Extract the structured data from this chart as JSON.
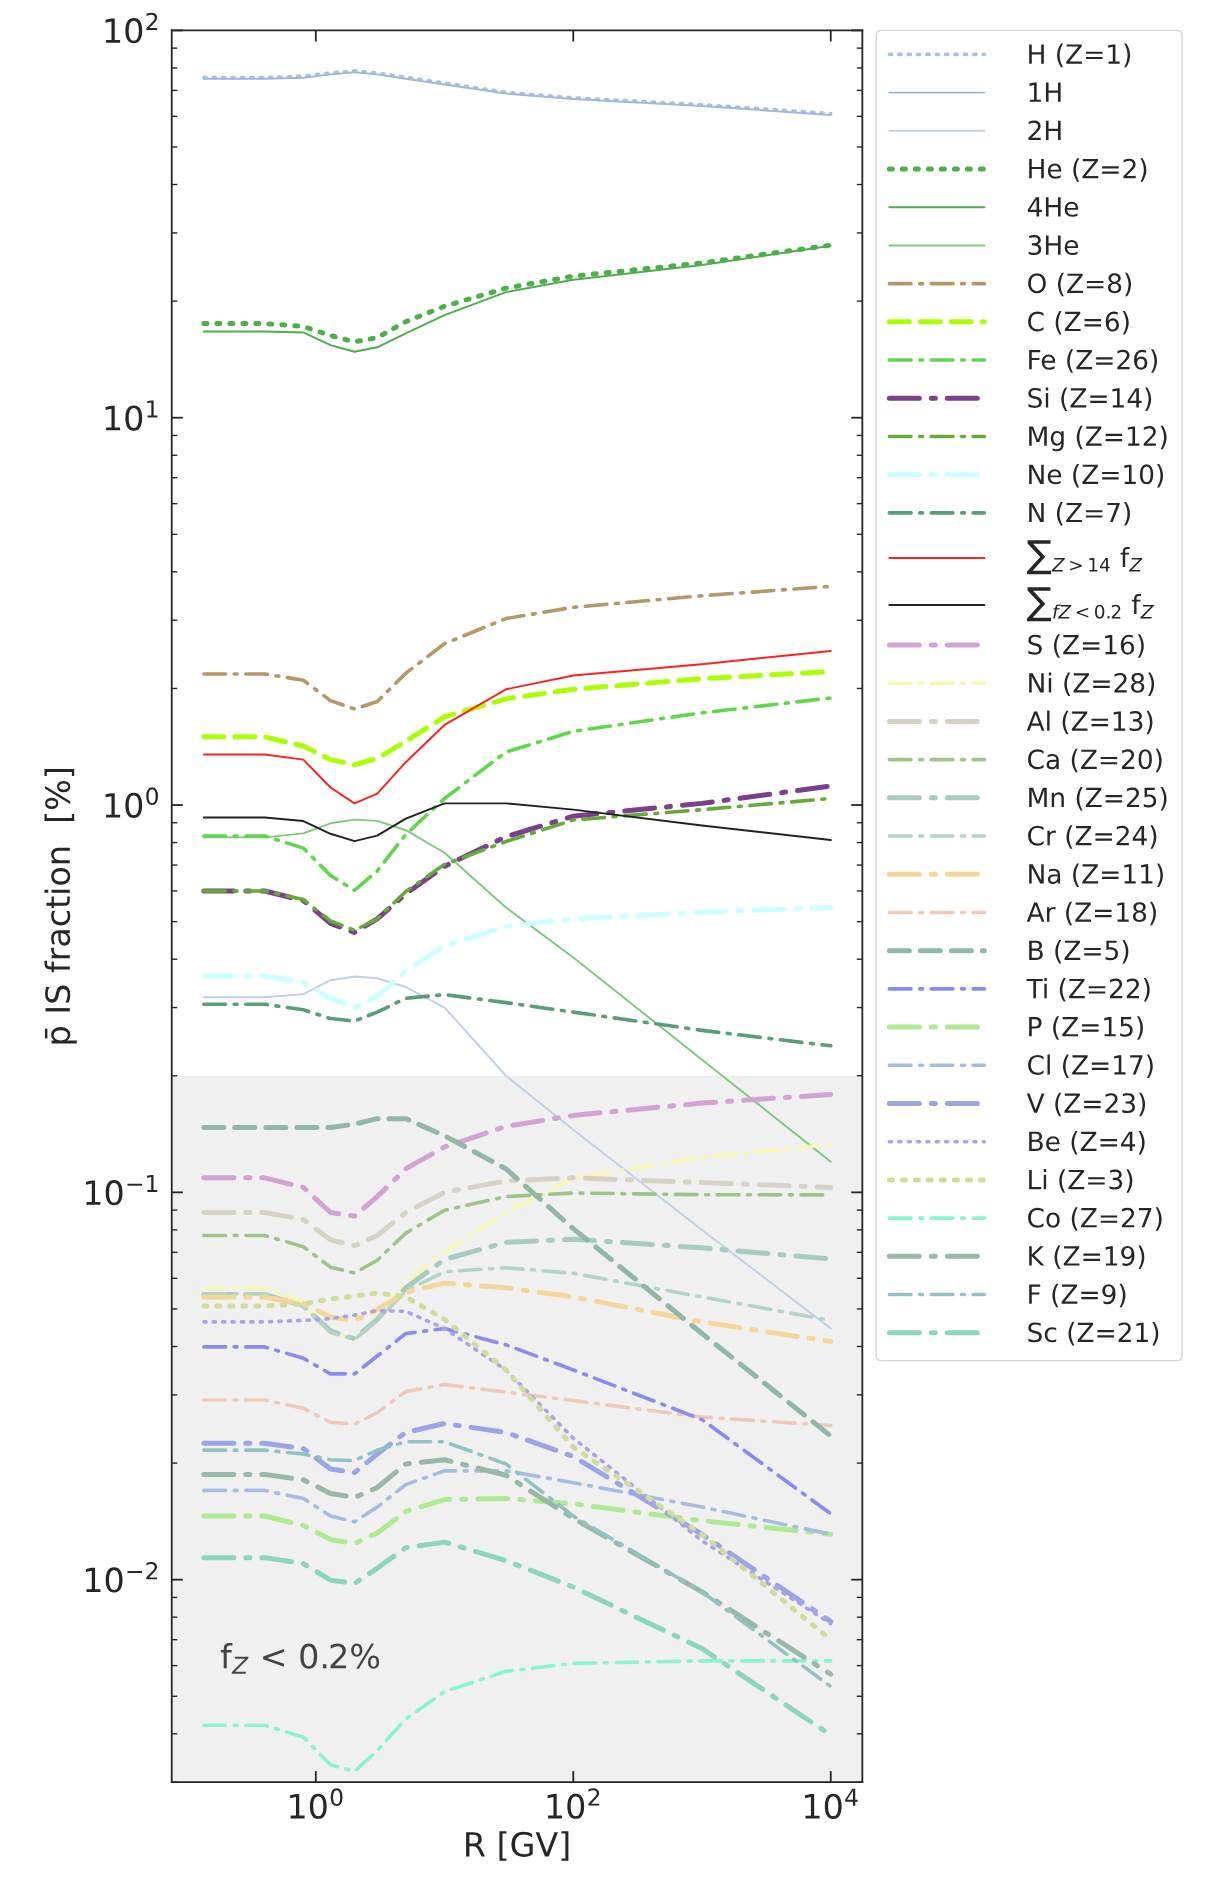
{
  "chart_data": {
    "type": "line",
    "xlabel": "R [GV]",
    "ylabel": "p̄ IS fraction  [%]",
    "log": "xy",
    "grid": false,
    "legend": "right",
    "x": [
      0.135,
      0.4,
      0.8,
      1.3,
      2,
      3,
      5,
      10,
      30,
      100,
      1000,
      10000
    ],
    "xlim": [
      0.076,
      17600
    ],
    "ylim": [
      0.003,
      100
    ],
    "xticks": [
      {
        "value": 1,
        "label": "10$^{0}$"
      },
      {
        "value": 100,
        "label": "10$^{2}$"
      },
      {
        "value": 10000,
        "label": "10$^{4}$"
      }
    ],
    "yticks": [
      {
        "value": 0.01,
        "label": "10$^{−2}$"
      },
      {
        "value": 0.1,
        "label": "10$^{−1}$"
      },
      {
        "value": 1,
        "label": "10$^{0}$"
      },
      {
        "value": 10,
        "label": "10$^{1}$"
      },
      {
        "value": 100,
        "label": "10$^{2}$"
      }
    ],
    "bands": [
      {
        "axis": "y",
        "from": 0.003,
        "to": 0.2,
        "color": "#f0f0f0"
      }
    ],
    "annotations": [
      "f$_{Z}$ < 0.2%"
    ],
    "series": [
      {
        "name": "H (Z=1)",
        "color": "#a9c0df",
        "line_style": "dotted",
        "values": [
          75.5,
          75.5,
          76.2,
          77.6,
          78.7,
          77.6,
          75.7,
          73.1,
          69.2,
          67.0,
          64.3,
          61.0
        ]
      },
      {
        "name": "1H",
        "color": "#9fb8dc",
        "line_style": "solid",
        "values": [
          75.0,
          75.0,
          75.5,
          77.0,
          78.0,
          77.0,
          75.0,
          72.5,
          68.7,
          66.5,
          63.8,
          60.5
        ]
      },
      {
        "name": "2H",
        "color": "#c0d0e6",
        "line_style": "solid",
        "values": [
          0.319,
          0.319,
          0.325,
          0.353,
          0.361,
          0.357,
          0.339,
          0.3,
          0.2,
          0.145,
          0.08,
          0.0445
        ]
      },
      {
        "name": "He (Z=2)",
        "color": "#4daf4a",
        "line_style": "dotted",
        "values": [
          17.5,
          17.5,
          17.2,
          16.3,
          15.7,
          16.1,
          17.7,
          19.4,
          21.6,
          23.2,
          25.1,
          27.9
        ]
      },
      {
        "name": "4He",
        "color": "#4daf4a",
        "line_style": "solid",
        "values": [
          16.7,
          16.7,
          16.6,
          15.4,
          14.8,
          15.2,
          16.5,
          18.4,
          21.1,
          22.7,
          24.8,
          27.8
        ]
      },
      {
        "name": "3He",
        "color": "#7fc97f",
        "line_style": "solid",
        "values": [
          0.825,
          0.825,
          0.845,
          0.897,
          0.917,
          0.91,
          0.861,
          0.753,
          0.544,
          0.404,
          0.22,
          0.12
        ]
      },
      {
        "name": "O (Z=8)",
        "color": "#b5986a",
        "line_style": "dashdot",
        "values": [
          2.18,
          2.18,
          2.1,
          1.86,
          1.77,
          1.85,
          2.19,
          2.61,
          3.03,
          3.24,
          3.47,
          3.67
        ]
      },
      {
        "name": "C (Z=6)",
        "color": "#aaff00",
        "line_style": "dashed",
        "values": [
          1.5,
          1.5,
          1.42,
          1.31,
          1.27,
          1.32,
          1.46,
          1.69,
          1.88,
          1.99,
          2.12,
          2.21
        ]
      },
      {
        "name": "Fe (Z=26)",
        "color": "#5ed84a",
        "line_style": "dashdot",
        "values": [
          0.832,
          0.832,
          0.774,
          0.658,
          0.602,
          0.676,
          0.839,
          1.04,
          1.37,
          1.55,
          1.73,
          1.89
        ]
      },
      {
        "name": "Si (Z=14)",
        "color": "#7b3f8c",
        "line_style": "dashdot",
        "values": [
          0.6,
          0.6,
          0.567,
          0.495,
          0.469,
          0.508,
          0.59,
          0.695,
          0.828,
          0.936,
          1.01,
          1.12
        ]
      },
      {
        "name": "Mg (Z=12)",
        "color": "#66aa3a",
        "line_style": "dashdot",
        "values": [
          0.6,
          0.6,
          0.57,
          0.502,
          0.475,
          0.508,
          0.598,
          0.703,
          0.805,
          0.915,
          0.973,
          1.04
        ]
      },
      {
        "name": "Ne (Z=10)",
        "color": "#ccffff",
        "line_style": "dashdot",
        "values": [
          0.362,
          0.362,
          0.348,
          0.317,
          0.299,
          0.321,
          0.373,
          0.432,
          0.486,
          0.508,
          0.529,
          0.544
        ]
      },
      {
        "name": "N (Z=7)",
        "color": "#5a9e78",
        "line_style": "dashdot",
        "values": [
          0.306,
          0.306,
          0.296,
          0.281,
          0.277,
          0.292,
          0.317,
          0.324,
          0.309,
          0.292,
          0.262,
          0.239
        ]
      },
      {
        "name": "∑$_{Z>14}$ f$_{Z}$",
        "color": "#ff2020",
        "line_style": "solid",
        "values": [
          1.35,
          1.35,
          1.31,
          1.11,
          1.01,
          1.07,
          1.29,
          1.61,
          1.99,
          2.16,
          2.31,
          2.5
        ]
      },
      {
        "name": "∑$_{fZ<0.2}$ f$_{Z}$",
        "color": "#222222",
        "line_style": "solid",
        "values": [
          0.929,
          0.929,
          0.909,
          0.843,
          0.807,
          0.834,
          0.922,
          1.01,
          1.01,
          0.973,
          0.885,
          0.812
        ]
      },
      {
        "name": "S (Z=16)",
        "color": "#d4a3d4",
        "line_style": "dashdot",
        "values": [
          0.109,
          0.109,
          0.103,
          0.0887,
          0.0869,
          0.0975,
          0.115,
          0.131,
          0.148,
          0.158,
          0.17,
          0.179
        ]
      },
      {
        "name": "Ni (Z=28)",
        "color": "#f7f7b0",
        "line_style": "dashdot",
        "values": [
          0.0567,
          0.0567,
          0.0523,
          0.0432,
          0.0416,
          0.0482,
          0.0583,
          0.0705,
          0.0887,
          0.109,
          0.123,
          0.133
        ]
      },
      {
        "name": "Al (Z=13)",
        "color": "#d6d3c6",
        "line_style": "dashdot",
        "values": [
          0.0887,
          0.0887,
          0.0851,
          0.0754,
          0.0728,
          0.0774,
          0.0887,
          0.1,
          0.107,
          0.109,
          0.106,
          0.103
        ]
      },
      {
        "name": "Ca (Z=20)",
        "color": "#9fc48a",
        "line_style": "dashdot",
        "values": [
          0.0774,
          0.0774,
          0.0724,
          0.0641,
          0.0619,
          0.0668,
          0.0785,
          0.0899,
          0.0975,
          0.0996,
          0.0986,
          0.0985
        ]
      },
      {
        "name": "Mn (Z=25)",
        "color": "#a7cbc0",
        "line_style": "dashdot",
        "values": [
          0.0545,
          0.0545,
          0.0509,
          0.0439,
          0.0419,
          0.047,
          0.0567,
          0.0671,
          0.0743,
          0.0757,
          0.0719,
          0.0673
        ]
      },
      {
        "name": "Cr (Z=24)",
        "color": "#b3d4c8",
        "line_style": "dashdot",
        "values": [
          0.0547,
          0.0547,
          0.0509,
          0.0435,
          0.0417,
          0.0467,
          0.0557,
          0.0624,
          0.0639,
          0.0618,
          0.0537,
          0.0467
        ]
      },
      {
        "name": "Na (Z=11)",
        "color": "#f5d69a",
        "line_style": "dashdot",
        "values": [
          0.0536,
          0.0536,
          0.0516,
          0.0476,
          0.0467,
          0.0498,
          0.0552,
          0.0583,
          0.0567,
          0.0537,
          0.0463,
          0.0412
        ]
      },
      {
        "name": "Ar (Z=18)",
        "color": "#edc9b8",
        "line_style": "dashdot",
        "values": [
          0.0291,
          0.0291,
          0.0277,
          0.0255,
          0.0252,
          0.027,
          0.0306,
          0.0319,
          0.0305,
          0.029,
          0.0263,
          0.025
        ]
      },
      {
        "name": "B (Z=5)",
        "color": "#8fb8a6",
        "line_style": "dashed",
        "values": [
          0.147,
          0.147,
          0.147,
          0.147,
          0.15,
          0.155,
          0.155,
          0.14,
          0.115,
          0.0806,
          0.0432,
          0.0235
        ]
      },
      {
        "name": "Ti (Z=22)",
        "color": "#8a8af5",
        "line_style": "dashdot",
        "values": [
          0.0399,
          0.0399,
          0.0373,
          0.034,
          0.034,
          0.0378,
          0.0432,
          0.0445,
          0.0404,
          0.0348,
          0.0259,
          0.0148
        ]
      },
      {
        "name": "P (Z=15)",
        "color": "#aeea92",
        "line_style": "dashdot",
        "values": [
          0.0146,
          0.0146,
          0.0138,
          0.0127,
          0.0124,
          0.0132,
          0.015,
          0.0161,
          0.0162,
          0.0157,
          0.0142,
          0.0131
        ]
      },
      {
        "name": "Cl (Z=17)",
        "color": "#a4bde0",
        "line_style": "dashdot",
        "values": [
          0.017,
          0.017,
          0.0162,
          0.0146,
          0.0141,
          0.0154,
          0.0176,
          0.0191,
          0.0191,
          0.0178,
          0.0154,
          0.0131
        ]
      },
      {
        "name": "V (Z=23)",
        "color": "#9aa4e6",
        "line_style": "dashdot",
        "values": [
          0.0225,
          0.0225,
          0.0218,
          0.0193,
          0.0189,
          0.0211,
          0.024,
          0.0253,
          0.024,
          0.0208,
          0.0131,
          0.0078
        ]
      },
      {
        "name": "Be (Z=4)",
        "color": "#aaa2ea",
        "line_style": "dotted",
        "values": [
          0.0463,
          0.0463,
          0.0467,
          0.0472,
          0.0482,
          0.0495,
          0.0493,
          0.0445,
          0.0348,
          0.0232,
          0.0126,
          0.0077
        ]
      },
      {
        "name": "Li (Z=3)",
        "color": "#d0dc9c",
        "line_style": "dotted",
        "values": [
          0.0509,
          0.0509,
          0.0516,
          0.053,
          0.054,
          0.055,
          0.0537,
          0.047,
          0.0348,
          0.022,
          0.0131,
          0.007
        ]
      },
      {
        "name": "Co (Z=27)",
        "color": "#88f5d0",
        "line_style": "dashdot",
        "values": [
          0.00421,
          0.00421,
          0.00392,
          0.00333,
          0.0032,
          0.00362,
          0.00437,
          0.00514,
          0.0058,
          0.00608,
          0.00617,
          0.00617
        ]
      },
      {
        "name": "K (Z=19)",
        "color": "#98b8a8",
        "line_style": "dashdot",
        "values": [
          0.0187,
          0.0187,
          0.0181,
          0.0167,
          0.0163,
          0.0173,
          0.0199,
          0.0204,
          0.0186,
          0.0144,
          0.0093,
          0.0057
        ]
      },
      {
        "name": "F (Z=9)",
        "color": "#92c2c2",
        "line_style": "dashdot",
        "values": [
          0.0216,
          0.0216,
          0.0211,
          0.0204,
          0.0203,
          0.0216,
          0.0227,
          0.0227,
          0.0199,
          0.0146,
          0.0093,
          0.0053
        ]
      },
      {
        "name": "Sc (Z=21)",
        "color": "#8bd6bc",
        "line_style": "dashdot",
        "values": [
          0.0114,
          0.0114,
          0.011,
          0.00997,
          0.00978,
          0.0107,
          0.0121,
          0.0125,
          0.0112,
          0.00957,
          0.00664,
          0.00397
        ]
      }
    ]
  }
}
